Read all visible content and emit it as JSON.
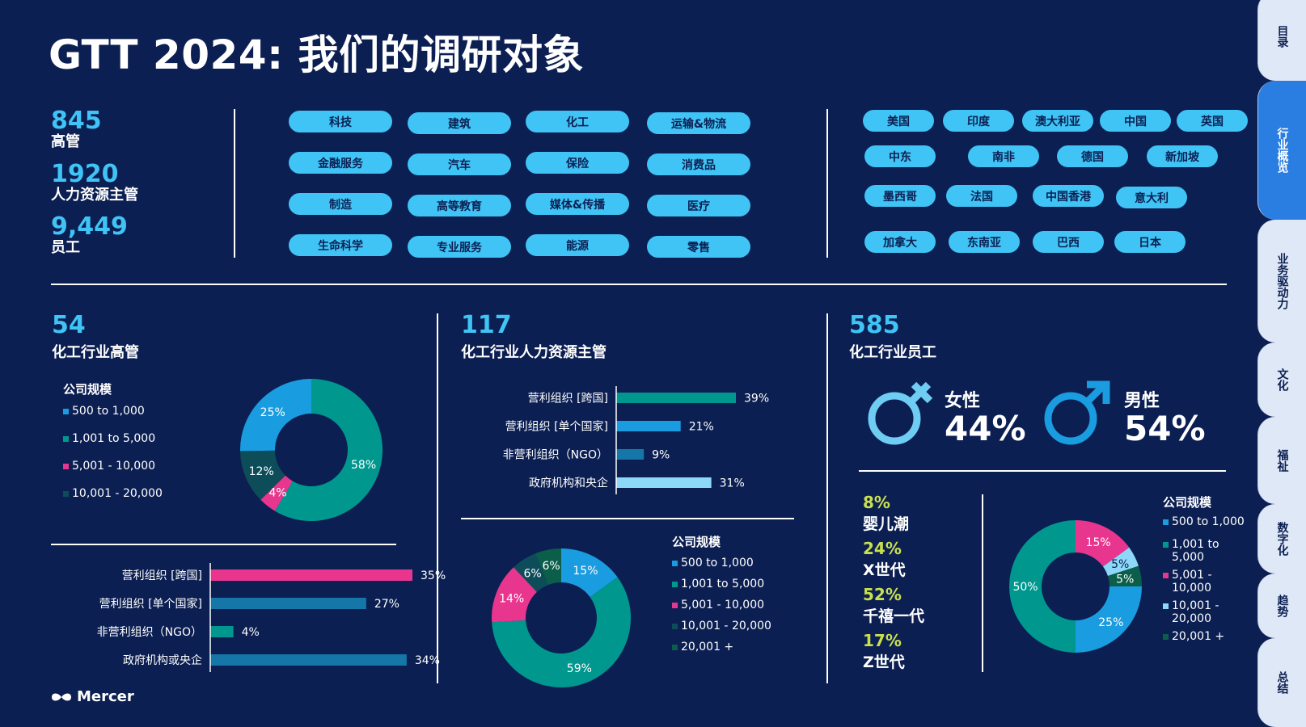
{
  "title": "GTT 2024: 我们的调研对象",
  "stats": [
    {
      "num": "845",
      "label": "高管"
    },
    {
      "num": "1920",
      "label": "人力资源主管"
    },
    {
      "num": "9,449",
      "label": "员工"
    }
  ],
  "industries": [
    "科技",
    "建筑",
    "化工",
    "运输&物流",
    "金融服务",
    "汽车",
    "保险",
    "消费品",
    "制造",
    "高等教育",
    "媒体&传播",
    "医疗",
    "生命科学",
    "专业服务",
    "能源",
    "零售"
  ],
  "countries": [
    "美国",
    "印度",
    "澳大利亚",
    "中国",
    "英国",
    "中东",
    "南非",
    "德国",
    "新加坡",
    "墨西哥",
    "法国",
    "中国香港",
    "意大利",
    "加拿大",
    "东南亚",
    "巴西",
    "日本"
  ],
  "side_tabs": [
    "目录",
    "行业概览",
    "业务驱动力",
    "文化",
    "福祉",
    "数字化",
    "趋势",
    "总结"
  ],
  "colors": {
    "c1": "#1a9ce0",
    "c2": "#00978f",
    "c3": "#e8368e",
    "c4": "#0d4d5a",
    "c5": "#0b5e4a",
    "c6": "#8dd8f8",
    "accent": "#3fc4f5",
    "bg": "#0c1f52"
  },
  "sections": {
    "exec": {
      "num": "54",
      "label": "化工行业高管"
    },
    "hr": {
      "num": "117",
      "label": "化工行业人力资源主管"
    },
    "emp": {
      "num": "585",
      "label": "化工行业员工"
    }
  },
  "legend": {
    "title": "公司规模",
    "items": [
      "500 to 1,000",
      "1,001 to 5,000",
      "5,001 - 10,000",
      "10,001 - 20,000",
      "20,001 +"
    ],
    "items_emp": [
      "500 to 1,000",
      "1,001 to 5,000",
      "5,001 - 10,000",
      "10,001 - 20,000",
      "20,001 +"
    ]
  },
  "gender": {
    "female_label": "女性",
    "female_pct": "44%",
    "male_label": "男性",
    "male_pct": "54%"
  },
  "generations": [
    {
      "pct": "8%",
      "label": "婴儿潮",
      "color": "#c8e04e"
    },
    {
      "pct": "24%",
      "label": "X世代",
      "color": "#c8e04e"
    },
    {
      "pct": "52%",
      "label": "千禧一代",
      "color": "#c8e04e"
    },
    {
      "pct": "17%",
      "label": "Z世代",
      "color": "#c8e04e"
    }
  ],
  "logo": "Mercer",
  "chart_data": [
    {
      "type": "pie",
      "id": "exec-donut",
      "title": "公司规模",
      "labels": [
        "500 to 1,000",
        "1,001 to 5,000",
        "5,001 - 10,000",
        "10,001 - 20,000"
      ],
      "values": [
        25,
        58,
        4,
        12
      ],
      "value_labels": [
        "25%",
        "58%",
        "4%",
        "12%"
      ],
      "order": [
        0,
        1,
        2,
        3
      ]
    },
    {
      "type": "bar",
      "id": "exec-bars",
      "orientation": "horizontal",
      "categories": [
        "营利组织 [跨国]",
        "营利组织 [单个国家]",
        "非营利组织（NGO）",
        "政府机构或央企"
      ],
      "values": [
        35,
        27,
        4,
        34
      ],
      "value_labels": [
        "35%",
        "27%",
        "4%",
        "34%"
      ],
      "colors": [
        "#e8368e",
        "#1577a8",
        "#00978f",
        "#1577a8"
      ]
    },
    {
      "type": "bar",
      "id": "hr-bars",
      "orientation": "horizontal",
      "categories": [
        "营利组织 [跨国]",
        "营利组织 [单个国家]",
        "非营利组织（NGO）",
        "政府机构和央企"
      ],
      "values": [
        39,
        21,
        9,
        31
      ],
      "value_labels": [
        "39%",
        "21%",
        "9%",
        "31%"
      ],
      "colors": [
        "#00978f",
        "#1a9ce0",
        "#1577a8",
        "#8dd8f8"
      ]
    },
    {
      "type": "pie",
      "id": "hr-donut",
      "title": "公司规模",
      "labels": [
        "500 to 1,000",
        "1,001 to 5,000",
        "5,001 - 10,000",
        "10,001 - 20,000",
        "20,001 +"
      ],
      "values": [
        15,
        59,
        14,
        6,
        6
      ],
      "value_labels": [
        "15%",
        "59%",
        "14%",
        "6%",
        "6%"
      ]
    },
    {
      "type": "pie",
      "id": "emp-donut",
      "title": "公司规模",
      "labels": [
        "500 to 1,000",
        "1,001 to 5,000",
        "5,001 - 10,000",
        "10,001 - 20,000",
        "20,001 +"
      ],
      "values": [
        25,
        50,
        15,
        5,
        5
      ],
      "value_labels": [
        "25%",
        "50%",
        "15%",
        "5%",
        "5%"
      ]
    }
  ]
}
